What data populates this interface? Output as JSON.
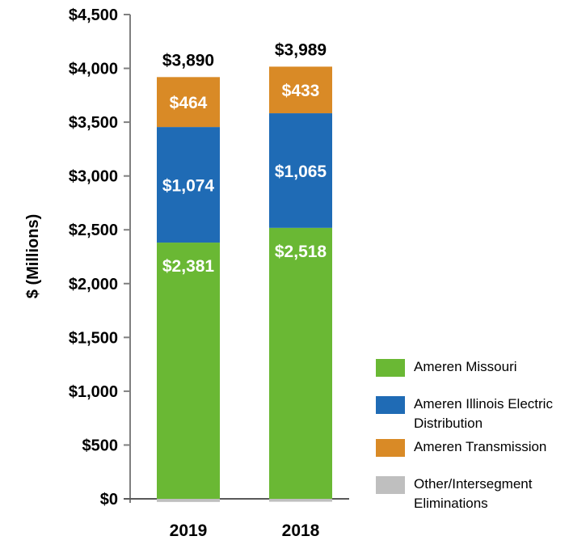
{
  "chart_data": {
    "type": "bar",
    "stacked": true,
    "title": "",
    "xlabel": "",
    "ylabel": "$ (Millions)",
    "ylim": [
      0,
      4500
    ],
    "yticks": [
      0,
      500,
      1000,
      1500,
      2000,
      2500,
      3000,
      3500,
      4000,
      4500
    ],
    "ytick_labels": [
      "$0",
      "$500",
      "$1,000",
      "$1,500",
      "$2,000",
      "$2,500",
      "$3,000",
      "$3,500",
      "$4,000",
      "$4,500"
    ],
    "categories": [
      "2019",
      "2018"
    ],
    "series": [
      {
        "name": "Ameren Missouri",
        "color": "#6ab834",
        "values": [
          2381,
          2518
        ],
        "labels": [
          "$2,381",
          "$2,518"
        ]
      },
      {
        "name": "Ameren Illinois Electric Distribution",
        "color": "#1f6bb5",
        "values": [
          1074,
          1065
        ],
        "labels": [
          "$1,074",
          "$1,065"
        ]
      },
      {
        "name": "Ameren Transmission",
        "color": "#d98a26",
        "values": [
          464,
          433
        ],
        "labels": [
          "$464",
          "$433"
        ]
      },
      {
        "name": "Other/Intersegment Eliminations",
        "color": "#bfbfbf",
        "values": [
          -29,
          -27
        ],
        "labels": []
      }
    ],
    "totals": [
      3890,
      3989
    ],
    "total_labels": [
      "$3,890",
      "$3,989"
    ],
    "grid": false,
    "legend_position": "right"
  }
}
